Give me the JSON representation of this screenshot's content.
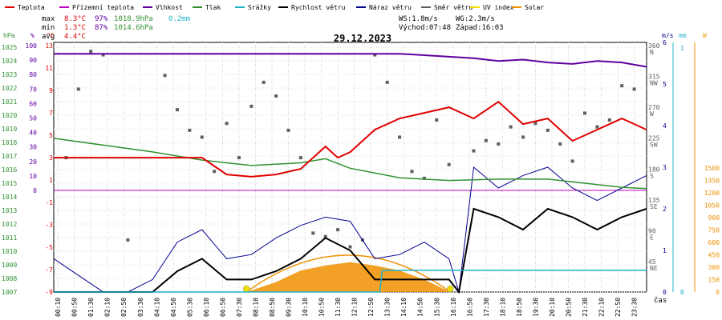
{
  "chart_data": {
    "type": "line",
    "title": "29.12.2023",
    "legend": [
      {
        "name": "Teplota",
        "color": "#e00000"
      },
      {
        "name": "Přízemní teplota",
        "color": "#c000c0"
      },
      {
        "name": "Vlhkost",
        "color": "#6000a0"
      },
      {
        "name": "Tlak",
        "color": "#309030"
      },
      {
        "name": "Srážky",
        "color": "#20b0c8"
      },
      {
        "name": "Rychlost větru",
        "color": "#000000"
      },
      {
        "name": "Náraz větru",
        "color": "#000090"
      },
      {
        "name": "Směr větru",
        "color": "#606060"
      },
      {
        "name": "UV index",
        "color": "#f0e000"
      },
      {
        "name": "Solar",
        "color": "#f09000"
      }
    ],
    "stats": {
      "max_label": "max",
      "max_temp": "8.3°C",
      "max_hum": "97%",
      "max_press": "1018.9hPa",
      "max_rain": "0.2mm",
      "min_label": "min",
      "min_temp": "1.3°C",
      "min_hum": "87%",
      "min_press": "1014.6hPa",
      "avg_label": "avg",
      "avg_temp": "4.4°C",
      "ws": "WS:1.8m/s",
      "wg": "WG:2.3m/s",
      "sunrise": "Východ:07:48",
      "sunset": "Západ:16:03"
    },
    "axes": {
      "hpa_unit": "hPa",
      "pct_unit": "%",
      "c_unit": "°C",
      "ms_unit": "m/s",
      "mm_unit": "mm",
      "w_unit": "W",
      "hpa_ticks": [
        "1025",
        "1024",
        "1023",
        "1022",
        "1021",
        "1020",
        "1019",
        "1018",
        "1017",
        "1016",
        "1015",
        "1014",
        "1013",
        "1012",
        "1011",
        "1010",
        "1009",
        "1008",
        "1007"
      ],
      "pct_ticks": [
        "100",
        "90",
        "80",
        "70",
        "60",
        "50",
        "40",
        "30",
        "20",
        "10",
        "0"
      ],
      "c_ticks": [
        "13",
        "11",
        "9",
        "7",
        "5",
        "3",
        "1",
        "-1",
        "-3",
        "-5",
        "-7",
        "-9"
      ],
      "dir_ticks": [
        {
          "deg": "360",
          "card": "N"
        },
        {
          "deg": "315",
          "card": "NW"
        },
        {
          "deg": "270",
          "card": "W"
        },
        {
          "deg": "225",
          "card": "SW"
        },
        {
          "deg": "180",
          "card": "S"
        },
        {
          "deg": "135",
          "card": "SE"
        },
        {
          "deg": "90",
          "card": "E"
        },
        {
          "deg": "45",
          "card": "NE"
        }
      ],
      "ms_ticks": [
        "6",
        "5",
        "4",
        "3",
        "2",
        "1",
        "0"
      ],
      "mm_ticks": [
        "1",
        "0"
      ],
      "w_ticks": [
        "1500",
        "1350",
        "1200",
        "1050",
        "900",
        "750",
        "600",
        "450",
        "300",
        "150",
        "0"
      ],
      "time_ticks": [
        "00:10",
        "00:50",
        "01:30",
        "02:10",
        "02:50",
        "03:30",
        "04:10",
        "04:50",
        "05:30",
        "06:10",
        "06:50",
        "07:30",
        "08:10",
        "08:50",
        "09:30",
        "10:10",
        "10:50",
        "11:30",
        "12:10",
        "12:50",
        "13:30",
        "14:10",
        "14:50",
        "15:30",
        "16:10",
        "16:50",
        "17:30",
        "18:10",
        "18:50",
        "19:30",
        "20:10",
        "20:50",
        "21:30",
        "22:10",
        "22:50",
        "23:30"
      ],
      "time_label": "čas"
    },
    "series": [
      {
        "name": "Teplota",
        "unit": "°C",
        "x": [
          0,
          2,
          4,
          6,
          7,
          8,
          9,
          10,
          11,
          11.5,
          12,
          13,
          14,
          15,
          16,
          17,
          18,
          19,
          20,
          20.5,
          21,
          22,
          23,
          24
        ],
        "values": [
          3,
          3,
          3,
          3,
          1.5,
          1.3,
          1.5,
          2,
          4,
          3,
          3.5,
          5.5,
          6.5,
          7,
          7.5,
          6.5,
          8,
          6,
          6.5,
          5.5,
          4.5,
          5.5,
          6.5,
          5.5
        ]
      },
      {
        "name": "Přízemní teplota",
        "unit": "°C",
        "x": [
          0,
          24
        ],
        "values": [
          0,
          0
        ]
      },
      {
        "name": "Vlhkost",
        "unit": "%",
        "x": [
          0,
          14,
          15,
          16,
          17,
          18,
          19,
          20,
          21,
          22,
          23,
          24
        ],
        "values": [
          96,
          96,
          95,
          94,
          93,
          91,
          92,
          90,
          89,
          91,
          90,
          87
        ]
      },
      {
        "name": "Tlak",
        "unit": "hPa",
        "x": [
          0,
          2,
          4,
          6,
          8,
          10,
          11,
          12,
          14,
          16,
          18,
          20,
          22,
          23,
          24
        ],
        "values": [
          1018.3,
          1017.8,
          1017.3,
          1016.7,
          1016.3,
          1016.5,
          1016.8,
          1016.1,
          1015.4,
          1015.2,
          1015.3,
          1015.3,
          1014.9,
          1014.7,
          1014.6
        ]
      },
      {
        "name": "Srážky",
        "unit": "mm",
        "x": [
          0,
          13.2,
          13.3,
          24
        ],
        "values": [
          0,
          0,
          0.2,
          0.2
        ]
      },
      {
        "name": "Rychlost větru",
        "unit": "m/s",
        "x": [
          0,
          1,
          2,
          3,
          4,
          5,
          6,
          7,
          8,
          9,
          10,
          11,
          12,
          13,
          14,
          15,
          16,
          16.4,
          17,
          18,
          19,
          20,
          21,
          22,
          23,
          24
        ],
        "values": [
          0,
          0,
          0,
          0,
          0,
          0.5,
          0.8,
          0.3,
          0.3,
          0.5,
          0.8,
          1.3,
          1.0,
          0.3,
          0.3,
          0.3,
          0.3,
          0,
          2.0,
          1.8,
          1.5,
          2.0,
          1.8,
          1.5,
          1.8,
          2.0
        ]
      },
      {
        "name": "Náraz větru",
        "unit": "m/s",
        "x": [
          0,
          1,
          2,
          3,
          4,
          5,
          6,
          7,
          8,
          9,
          10,
          11,
          12,
          13,
          14,
          15,
          16,
          16.4,
          17,
          18,
          19,
          20,
          21,
          22,
          23,
          24
        ],
        "values": [
          0.8,
          0.4,
          0,
          0,
          0.3,
          1.2,
          1.5,
          0.8,
          0.9,
          1.3,
          1.6,
          1.8,
          1.7,
          0.8,
          0.9,
          1.2,
          0.8,
          0,
          3.0,
          2.5,
          2.8,
          3.0,
          2.5,
          2.2,
          2.5,
          2.8
        ]
      },
      {
        "name": "Směr větru",
        "unit": "°",
        "x": [
          0.5,
          1,
          1.5,
          2,
          3,
          4.5,
          5,
          5.5,
          6,
          6.5,
          7,
          7.5,
          8,
          8.5,
          9,
          9.5,
          10,
          10.5,
          11,
          11.5,
          12,
          12.5,
          13,
          13.5,
          14,
          14.5,
          15,
          15.5,
          16,
          17,
          17.5,
          18,
          18.5,
          19,
          19.5,
          20,
          20.5,
          21,
          21.5,
          22,
          22.5,
          23,
          23.5
        ],
        "values": [
          200,
          300,
          355,
          350,
          80,
          320,
          270,
          240,
          230,
          180,
          250,
          200,
          275,
          310,
          290,
          240,
          200,
          90,
          85,
          95,
          70,
          80,
          350,
          310,
          230,
          180,
          170,
          255,
          190,
          210,
          225,
          220,
          245,
          230,
          250,
          240,
          220,
          195,
          265,
          245,
          255,
          305,
          300
        ]
      },
      {
        "name": "Solar",
        "unit": "W",
        "x": [
          7.8,
          9,
          10,
          11,
          12,
          13,
          14,
          15,
          16.05
        ],
        "values": [
          0,
          120,
          260,
          320,
          360,
          320,
          260,
          150,
          0
        ]
      },
      {
        "name": "UV index",
        "unit": "",
        "x": [
          7.8,
          16.05
        ],
        "values": [
          0,
          0
        ]
      }
    ]
  }
}
